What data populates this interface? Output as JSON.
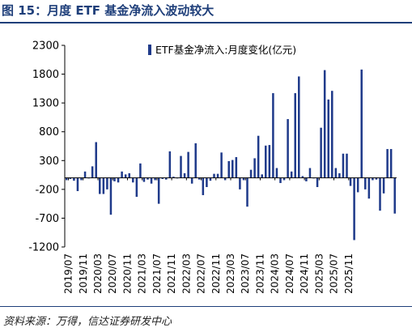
{
  "figure": {
    "label": "图 15：月度 ETF 基金净流入波动较大",
    "source": "资料来源：万得，信达证券研发中心"
  },
  "colors": {
    "bar": "#1F3A8A",
    "axis": "#000000",
    "title": "#1F3F7A"
  },
  "chart_data": {
    "type": "bar",
    "title": "",
    "xlabel": "",
    "ylabel": "",
    "ylim": [
      -1200,
      2300
    ],
    "yticks": [
      -1200,
      -700,
      -200,
      300,
      800,
      1300,
      1800,
      2300
    ],
    "grid": false,
    "legend_position": "top",
    "series": [
      {
        "name": "ETF基金净流入:月度变化(亿元)",
        "values": [
          -40,
          -20,
          -50,
          -230,
          -40,
          110,
          -10,
          200,
          620,
          -280,
          -280,
          -200,
          -640,
          -60,
          -80,
          110,
          60,
          80,
          -80,
          -330,
          250,
          -70,
          -30,
          -100,
          -40,
          -450,
          -20,
          -30,
          460,
          20,
          -10,
          380,
          80,
          450,
          -100,
          600,
          -30,
          -300,
          -160,
          -50,
          70,
          70,
          440,
          -40,
          290,
          310,
          360,
          -200,
          -40,
          -500,
          140,
          340,
          730,
          60,
          560,
          570,
          1470,
          170,
          -90,
          -40,
          1020,
          110,
          1470,
          1760,
          30,
          -60,
          170,
          -10,
          -160,
          870,
          1870,
          1360,
          1510,
          170,
          80,
          420,
          420,
          -140,
          -1080,
          -250,
          1880,
          -200,
          -360,
          -40,
          -30,
          -570,
          -270,
          500,
          500,
          -620
        ]
      }
    ],
    "x_tick_labels": [
      "2019/07",
      "2019/11",
      "2020/03",
      "2020/07",
      "2020/11",
      "2021/03",
      "2021/07",
      "2021/11",
      "2022/03",
      "2022/07",
      "2022/11",
      "2023/03",
      "2023/07",
      "2023/11",
      "2024/03",
      "2024/07",
      "2024/11",
      "2025/03",
      "2025/07",
      "2025/11"
    ]
  }
}
